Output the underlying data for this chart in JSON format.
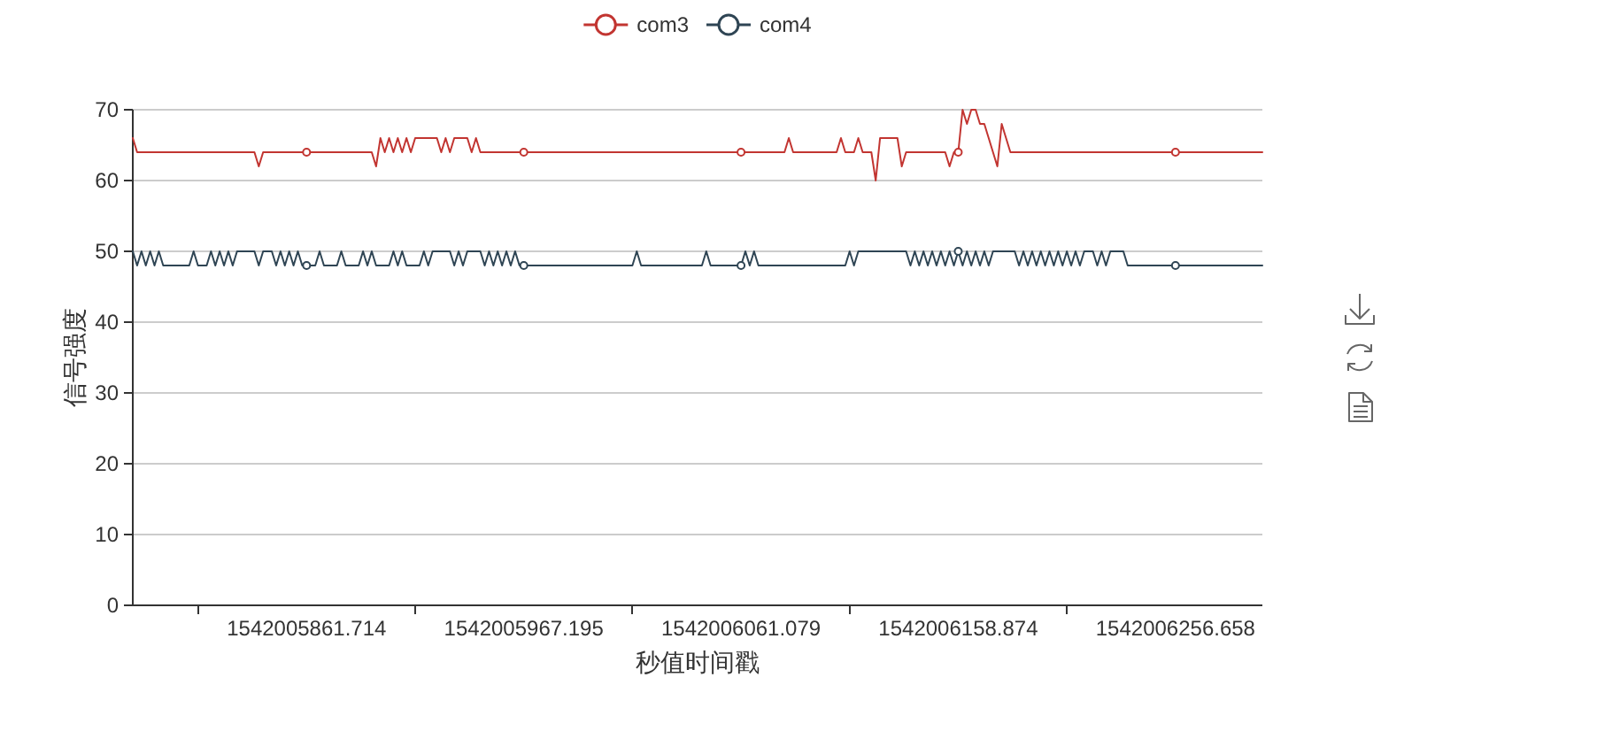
{
  "chart_data": {
    "type": "line",
    "categories": [
      null,
      null,
      null,
      null,
      null,
      null,
      null,
      null,
      null,
      null,
      null,
      null,
      null,
      null,
      null,
      null,
      null,
      null,
      null,
      null,
      null,
      null,
      null,
      null,
      null,
      null,
      null,
      null,
      null,
      null,
      null,
      null,
      null,
      null,
      null,
      null,
      null,
      null,
      null,
      null,
      "1542005861.714",
      null,
      null,
      null,
      null,
      null,
      null,
      null,
      null,
      null,
      null,
      null,
      null,
      null,
      null,
      null,
      null,
      null,
      null,
      null,
      null,
      null,
      null,
      null,
      null,
      null,
      null,
      null,
      null,
      null,
      null,
      null,
      null,
      null,
      null,
      null,
      null,
      null,
      null,
      null,
      null,
      null,
      null,
      null,
      null,
      null,
      null,
      null,
      null,
      null,
      "1542005967.195",
      null,
      null,
      null,
      null,
      null,
      null,
      null,
      null,
      null,
      null,
      null,
      null,
      null,
      null,
      null,
      null,
      null,
      null,
      null,
      null,
      null,
      null,
      null,
      null,
      null,
      null,
      null,
      null,
      null,
      null,
      null,
      null,
      null,
      null,
      null,
      null,
      null,
      null,
      null,
      null,
      null,
      null,
      null,
      null,
      null,
      null,
      null,
      null,
      null,
      "1542006061.079",
      null,
      null,
      null,
      null,
      null,
      null,
      null,
      null,
      null,
      null,
      null,
      null,
      null,
      null,
      null,
      null,
      null,
      null,
      null,
      null,
      null,
      null,
      null,
      null,
      null,
      null,
      null,
      null,
      null,
      null,
      null,
      null,
      null,
      null,
      null,
      null,
      null,
      null,
      null,
      null,
      null,
      null,
      null,
      null,
      null,
      null,
      null,
      null,
      null,
      "1542006158.874",
      null,
      null,
      null,
      null,
      null,
      null,
      null,
      null,
      null,
      null,
      null,
      null,
      null,
      null,
      null,
      null,
      null,
      null,
      null,
      null,
      null,
      null,
      null,
      null,
      null,
      null,
      null,
      null,
      null,
      null,
      null,
      null,
      null,
      null,
      null,
      null,
      null,
      null,
      null,
      null,
      null,
      null,
      null,
      null,
      null,
      null,
      null,
      null,
      null,
      "1542006256.658",
      null,
      null,
      null,
      null,
      null,
      null,
      null,
      null,
      null,
      null,
      null,
      null,
      null,
      null,
      null,
      null,
      null,
      null,
      null,
      null
    ],
    "series": [
      {
        "name": "com3",
        "color": "#c23531",
        "values": [
          66,
          64,
          64,
          64,
          64,
          64,
          64,
          64,
          64,
          64,
          64,
          64,
          64,
          64,
          64,
          64,
          64,
          64,
          64,
          64,
          64,
          64,
          64,
          64,
          64,
          64,
          64,
          64,
          64,
          62,
          64,
          64,
          64,
          64,
          64,
          64,
          64,
          64,
          64,
          64,
          64,
          64,
          64,
          64,
          64,
          64,
          64,
          64,
          64,
          64,
          64,
          64,
          64,
          64,
          64,
          64,
          62,
          66,
          64,
          66,
          64,
          66,
          64,
          66,
          64,
          66,
          66,
          66,
          66,
          66,
          66,
          64,
          66,
          64,
          66,
          66,
          66,
          66,
          64,
          66,
          64,
          64,
          64,
          64,
          64,
          64,
          64,
          64,
          64,
          64,
          64,
          64,
          64,
          64,
          64,
          64,
          64,
          64,
          64,
          64,
          64,
          64,
          64,
          64,
          64,
          64,
          64,
          64,
          64,
          64,
          64,
          64,
          64,
          64,
          64,
          64,
          64,
          64,
          64,
          64,
          64,
          64,
          64,
          64,
          64,
          64,
          64,
          64,
          64,
          64,
          64,
          64,
          64,
          64,
          64,
          64,
          64,
          64,
          64,
          64,
          64,
          64,
          64,
          64,
          64,
          64,
          64,
          64,
          64,
          64,
          64,
          66,
          64,
          64,
          64,
          64,
          64,
          64,
          64,
          64,
          64,
          64,
          64,
          66,
          64,
          64,
          64,
          66,
          64,
          64,
          64,
          60,
          66,
          66,
          66,
          66,
          66,
          62,
          64,
          64,
          64,
          64,
          64,
          64,
          64,
          64,
          64,
          64,
          62,
          64,
          64,
          70,
          68,
          70,
          70,
          68,
          68,
          66,
          64,
          62,
          68,
          66,
          64,
          64,
          64,
          64,
          64,
          64,
          64,
          64,
          64,
          64,
          64,
          64,
          64,
          64,
          64,
          64,
          64,
          64,
          64,
          64,
          64,
          64,
          64,
          64,
          64,
          64,
          64,
          64,
          64,
          64,
          64,
          64,
          64,
          64,
          64,
          64,
          64,
          64,
          64,
          64,
          64,
          64,
          64,
          64,
          64,
          64,
          64,
          64,
          64,
          64,
          64,
          64,
          64,
          64,
          64,
          64,
          64,
          64,
          64
        ]
      },
      {
        "name": "com4",
        "color": "#2f4554",
        "values": [
          50,
          48,
          50,
          48,
          50,
          48,
          50,
          48,
          48,
          48,
          48,
          48,
          48,
          48,
          50,
          48,
          48,
          48,
          50,
          48,
          50,
          48,
          50,
          48,
          50,
          50,
          50,
          50,
          50,
          48,
          50,
          50,
          50,
          48,
          50,
          48,
          50,
          48,
          50,
          48,
          48,
          48,
          48,
          50,
          48,
          48,
          48,
          48,
          50,
          48,
          48,
          48,
          48,
          50,
          48,
          50,
          48,
          48,
          48,
          48,
          50,
          48,
          50,
          48,
          48,
          48,
          48,
          50,
          48,
          50,
          50,
          50,
          50,
          50,
          48,
          50,
          48,
          50,
          50,
          50,
          50,
          48,
          50,
          48,
          50,
          48,
          50,
          48,
          50,
          48,
          48,
          48,
          48,
          48,
          48,
          48,
          48,
          48,
          48,
          48,
          48,
          48,
          48,
          48,
          48,
          48,
          48,
          48,
          48,
          48,
          48,
          48,
          48,
          48,
          48,
          48,
          50,
          48,
          48,
          48,
          48,
          48,
          48,
          48,
          48,
          48,
          48,
          48,
          48,
          48,
          48,
          48,
          50,
          48,
          48,
          48,
          48,
          48,
          48,
          48,
          48,
          50,
          48,
          50,
          48,
          48,
          48,
          48,
          48,
          48,
          48,
          48,
          48,
          48,
          48,
          48,
          48,
          48,
          48,
          48,
          48,
          48,
          48,
          48,
          48,
          50,
          48,
          50,
          50,
          50,
          50,
          50,
          50,
          50,
          50,
          50,
          50,
          50,
          50,
          48,
          50,
          48,
          50,
          48,
          50,
          48,
          50,
          48,
          50,
          48,
          50,
          48,
          50,
          48,
          50,
          48,
          50,
          48,
          50,
          50,
          50,
          50,
          50,
          50,
          48,
          50,
          48,
          50,
          48,
          50,
          48,
          50,
          48,
          50,
          48,
          50,
          48,
          50,
          48,
          50,
          50,
          50,
          48,
          50,
          48,
          50,
          50,
          50,
          50,
          48,
          48,
          48,
          48,
          48,
          48,
          48,
          48,
          48,
          48,
          48,
          48,
          48,
          48,
          48,
          48,
          48,
          48,
          48,
          48,
          48,
          48,
          48,
          48,
          48,
          48,
          48,
          48,
          48,
          48,
          48,
          48
        ]
      }
    ],
    "xlabel": "秒值时间戳",
    "ylabel": "信号强度",
    "ylim": [
      0,
      70
    ],
    "yticks": [
      0,
      10,
      20,
      30,
      40,
      50,
      60,
      70
    ],
    "grid": "y",
    "legend": "top",
    "line_style": "solid"
  }
}
